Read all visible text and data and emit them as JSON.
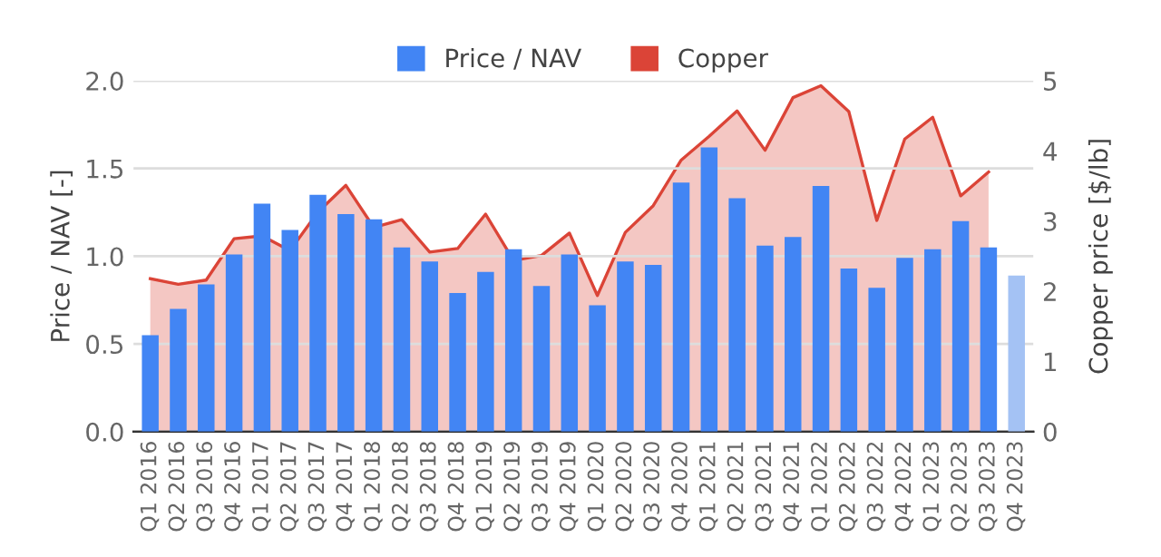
{
  "chart_data": {
    "type": "bar",
    "categories": [
      "Q1 2016",
      "Q2 2016",
      "Q3 2016",
      "Q4 2016",
      "Q1 2017",
      "Q2 2017",
      "Q3 2017",
      "Q4 2017",
      "Q1 2018",
      "Q2 2018",
      "Q3 2018",
      "Q4 2018",
      "Q1 2019",
      "Q2 2019",
      "Q3 2019",
      "Q4 2019",
      "Q1 2020",
      "Q2 2020",
      "Q3 2020",
      "Q4 2020",
      "Q1 2021",
      "Q2 2021",
      "Q3 2021",
      "Q4 2021",
      "Q1 2022",
      "Q2 2022",
      "Q3 2022",
      "Q4 2022",
      "Q1 2023",
      "Q2 2023",
      "Q3 2023",
      "Q4 2023"
    ],
    "series": [
      {
        "name": "Price / NAV",
        "color": "#4285f4",
        "colors": [
          "#4285f4",
          "#4285f4",
          "#4285f4",
          "#4285f4",
          "#4285f4",
          "#4285f4",
          "#4285f4",
          "#4285f4",
          "#4285f4",
          "#4285f4",
          "#4285f4",
          "#4285f4",
          "#4285f4",
          "#4285f4",
          "#4285f4",
          "#4285f4",
          "#4285f4",
          "#4285f4",
          "#4285f4",
          "#4285f4",
          "#4285f4",
          "#4285f4",
          "#4285f4",
          "#4285f4",
          "#4285f4",
          "#4285f4",
          "#4285f4",
          "#4285f4",
          "#4285f4",
          "#4285f4",
          "#4285f4",
          "#a4c2f4"
        ],
        "values": [
          0.55,
          0.7,
          0.84,
          1.01,
          1.3,
          1.15,
          1.35,
          1.24,
          1.21,
          1.05,
          0.97,
          0.79,
          0.91,
          1.04,
          0.83,
          1.01,
          0.72,
          0.97,
          0.95,
          1.42,
          1.62,
          1.33,
          1.06,
          1.11,
          1.4,
          0.93,
          0.82,
          0.99,
          1.04,
          1.2,
          1.05,
          0.89
        ]
      },
      {
        "name": "Copper",
        "type": "area",
        "axis": "y2",
        "color": "#db4437",
        "values": [
          2.18,
          2.1,
          2.16,
          2.75,
          2.79,
          2.58,
          3.13,
          3.51,
          2.91,
          3.02,
          2.56,
          2.61,
          3.1,
          2.44,
          2.51,
          2.83,
          1.94,
          2.84,
          3.22,
          3.87,
          4.21,
          4.57,
          4.01,
          4.76,
          4.93,
          4.56,
          3.01,
          4.17,
          4.48,
          3.36,
          3.7,
          null
        ]
      }
    ],
    "ylabel": "Price / NAV [-]",
    "y2label": "Copper price [$/lb]",
    "ylim": [
      0,
      2.0
    ],
    "yticks": [
      {
        "value": 0,
        "label": "0.0"
      },
      {
        "value": 0.5,
        "label": "0.5"
      },
      {
        "value": 1.0,
        "label": "1.0"
      },
      {
        "value": 1.5,
        "label": "1.5"
      },
      {
        "value": 2.0,
        "label": "2.0"
      }
    ],
    "y2lim": [
      0,
      5
    ],
    "y2ticks": [
      0,
      1,
      2,
      3,
      4,
      5
    ],
    "grid": "y",
    "legend": "top"
  }
}
